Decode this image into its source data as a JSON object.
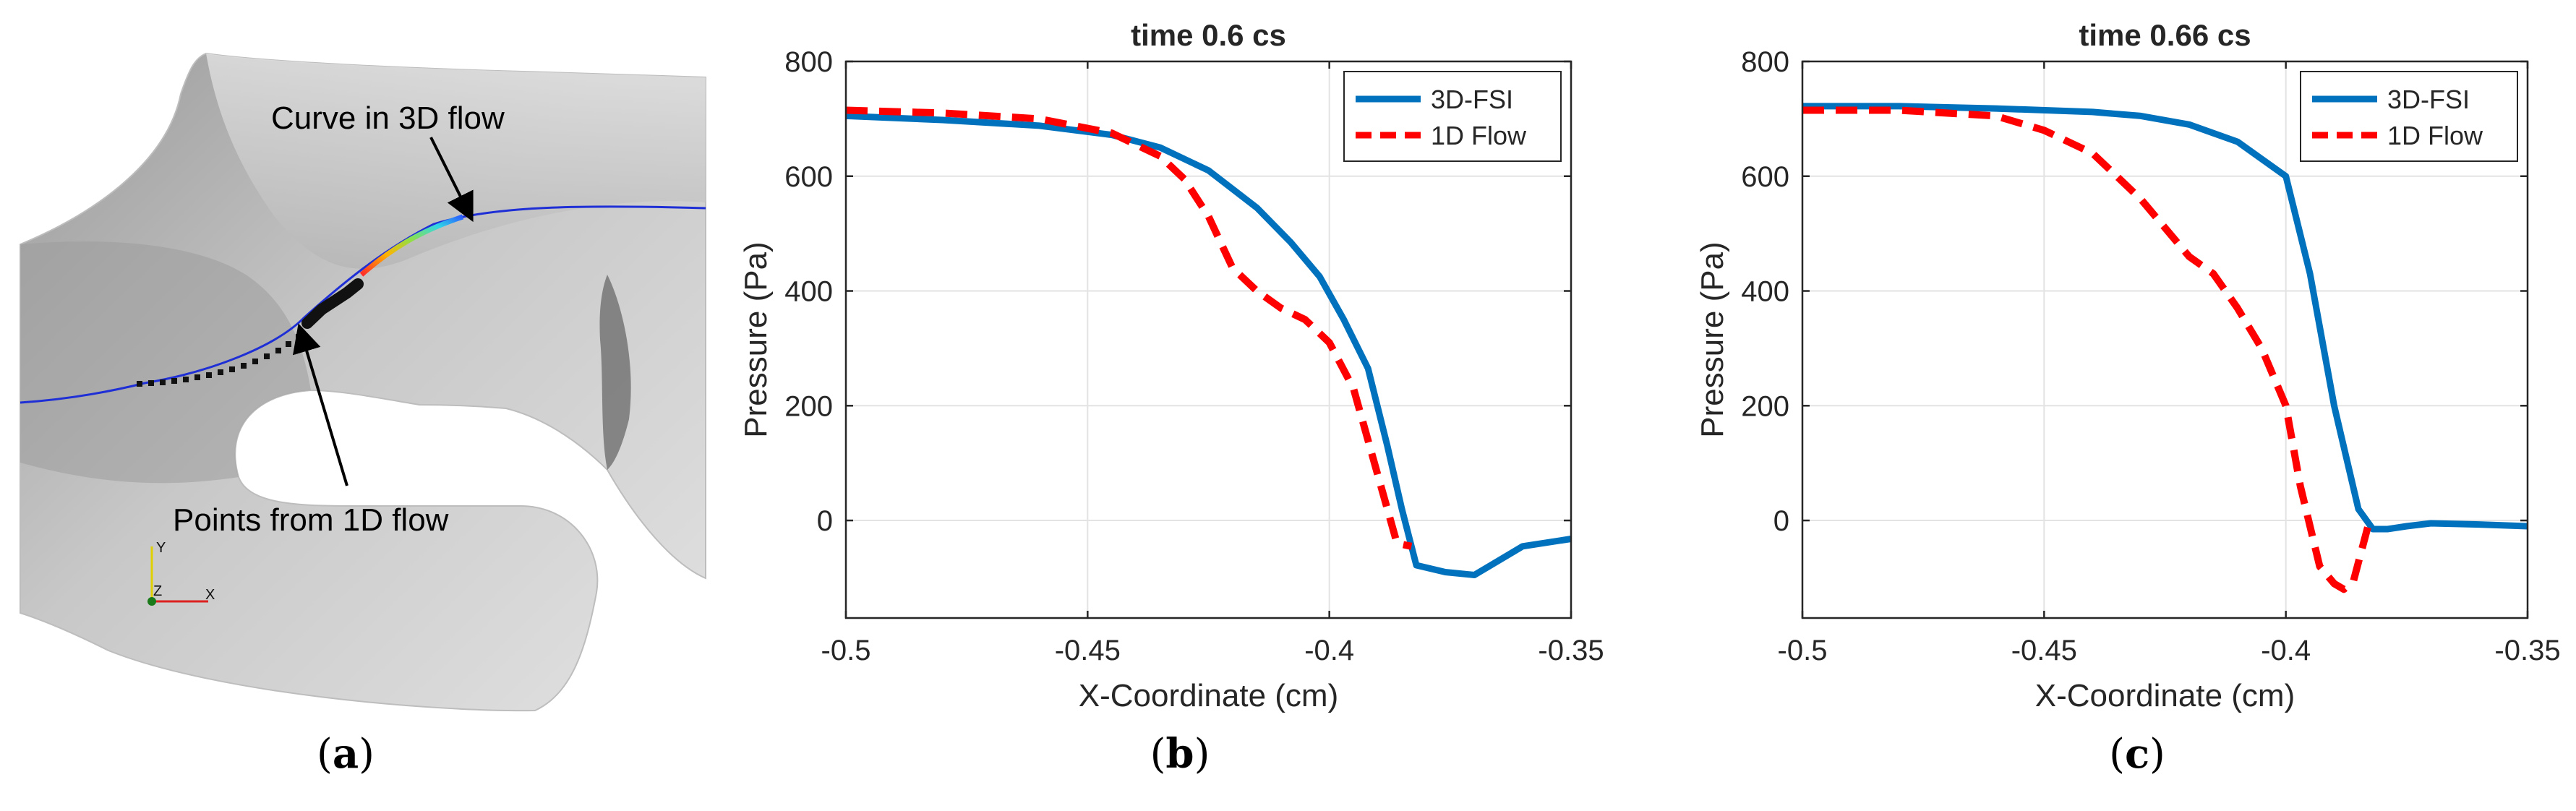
{
  "panel_a": {
    "curve_label": "Curve in 3D flow",
    "points_label": "Points from 1D flow",
    "axis_y": "Y",
    "axis_z": "Z",
    "axis_x": "X",
    "colors": {
      "curve": "#1f2fd6",
      "points": "#111111",
      "mesh_light": "#d9d9d9",
      "mesh_dark": "#8c8c8c"
    }
  },
  "captions": {
    "a_open": "(",
    "a_letter": "a",
    "a_close": ")",
    "b_open": "(",
    "b_letter": "b",
    "b_close": ")",
    "c_open": "(",
    "c_letter": "c",
    "c_close": ")"
  },
  "chart_data": [
    {
      "type": "line",
      "title": "time 0.6 cs",
      "xlabel": "X-Coordinate (cm)",
      "ylabel": "Pressure (Pa)",
      "xlim": [
        -0.5,
        -0.35
      ],
      "ylim": [
        -170,
        800
      ],
      "xticks": [
        -0.5,
        -0.45,
        -0.4,
        -0.35
      ],
      "xtick_labels": [
        "-0.5",
        "-0.45",
        "-0.4",
        "-0.35"
      ],
      "yticks": [
        0,
        200,
        400,
        600,
        800
      ],
      "ytick_labels": [
        "0",
        "200",
        "400",
        "600",
        "800"
      ],
      "grid": true,
      "legend_position": "top-right",
      "series": [
        {
          "name": "3D-FSI",
          "color": "#0072bd",
          "style": "solid",
          "x": [
            -0.5,
            -0.48,
            -0.46,
            -0.445,
            -0.435,
            -0.425,
            -0.415,
            -0.408,
            -0.402,
            -0.397,
            -0.392,
            -0.388,
            -0.385,
            -0.382,
            -0.376,
            -0.37,
            -0.36,
            -0.35
          ],
          "y": [
            705,
            698,
            688,
            672,
            650,
            610,
            545,
            485,
            425,
            350,
            265,
            130,
            20,
            -78,
            -90,
            -95,
            -45,
            -32
          ]
        },
        {
          "name": "1D Flow",
          "color": "#ff0000",
          "style": "dashed",
          "x": [
            -0.5,
            -0.48,
            -0.46,
            -0.445,
            -0.435,
            -0.43,
            -0.425,
            -0.42,
            -0.415,
            -0.41,
            -0.405,
            -0.4,
            -0.395,
            -0.39,
            -0.386,
            -0.383
          ],
          "y": [
            715,
            710,
            700,
            675,
            635,
            595,
            530,
            440,
            400,
            370,
            350,
            310,
            230,
            80,
            -40,
            -45
          ]
        }
      ]
    },
    {
      "type": "line",
      "title": "time 0.66 cs",
      "xlabel": "X-Coordinate (cm)",
      "ylabel": "Pressure (Pa)",
      "xlim": [
        -0.5,
        -0.35
      ],
      "ylim": [
        -170,
        800
      ],
      "xticks": [
        -0.5,
        -0.45,
        -0.4,
        -0.35
      ],
      "xtick_labels": [
        "-0.5",
        "-0.45",
        "-0.4",
        "-0.35"
      ],
      "yticks": [
        0,
        200,
        400,
        600,
        800
      ],
      "ytick_labels": [
        "0",
        "200",
        "400",
        "600",
        "800"
      ],
      "grid": true,
      "legend_position": "top-right",
      "series": [
        {
          "name": "3D-FSI",
          "color": "#0072bd",
          "style": "solid",
          "x": [
            -0.5,
            -0.48,
            -0.46,
            -0.44,
            -0.43,
            -0.42,
            -0.41,
            -0.405,
            -0.4,
            -0.395,
            -0.39,
            -0.385,
            -0.382,
            -0.379,
            -0.375,
            -0.37,
            -0.36,
            -0.35
          ],
          "y": [
            722,
            722,
            718,
            712,
            705,
            690,
            660,
            630,
            600,
            430,
            200,
            20,
            -15,
            -15,
            -10,
            -5,
            -7,
            -10
          ]
        },
        {
          "name": "1D Flow",
          "color": "#ff0000",
          "style": "dashed",
          "x": [
            -0.5,
            -0.48,
            -0.46,
            -0.45,
            -0.44,
            -0.43,
            -0.42,
            -0.415,
            -0.41,
            -0.405,
            -0.4,
            -0.397,
            -0.393,
            -0.39,
            -0.388,
            -0.386,
            -0.383
          ],
          "y": [
            715,
            715,
            705,
            680,
            640,
            560,
            460,
            430,
            370,
            300,
            200,
            60,
            -80,
            -110,
            -120,
            -105,
            -10
          ]
        }
      ]
    }
  ]
}
